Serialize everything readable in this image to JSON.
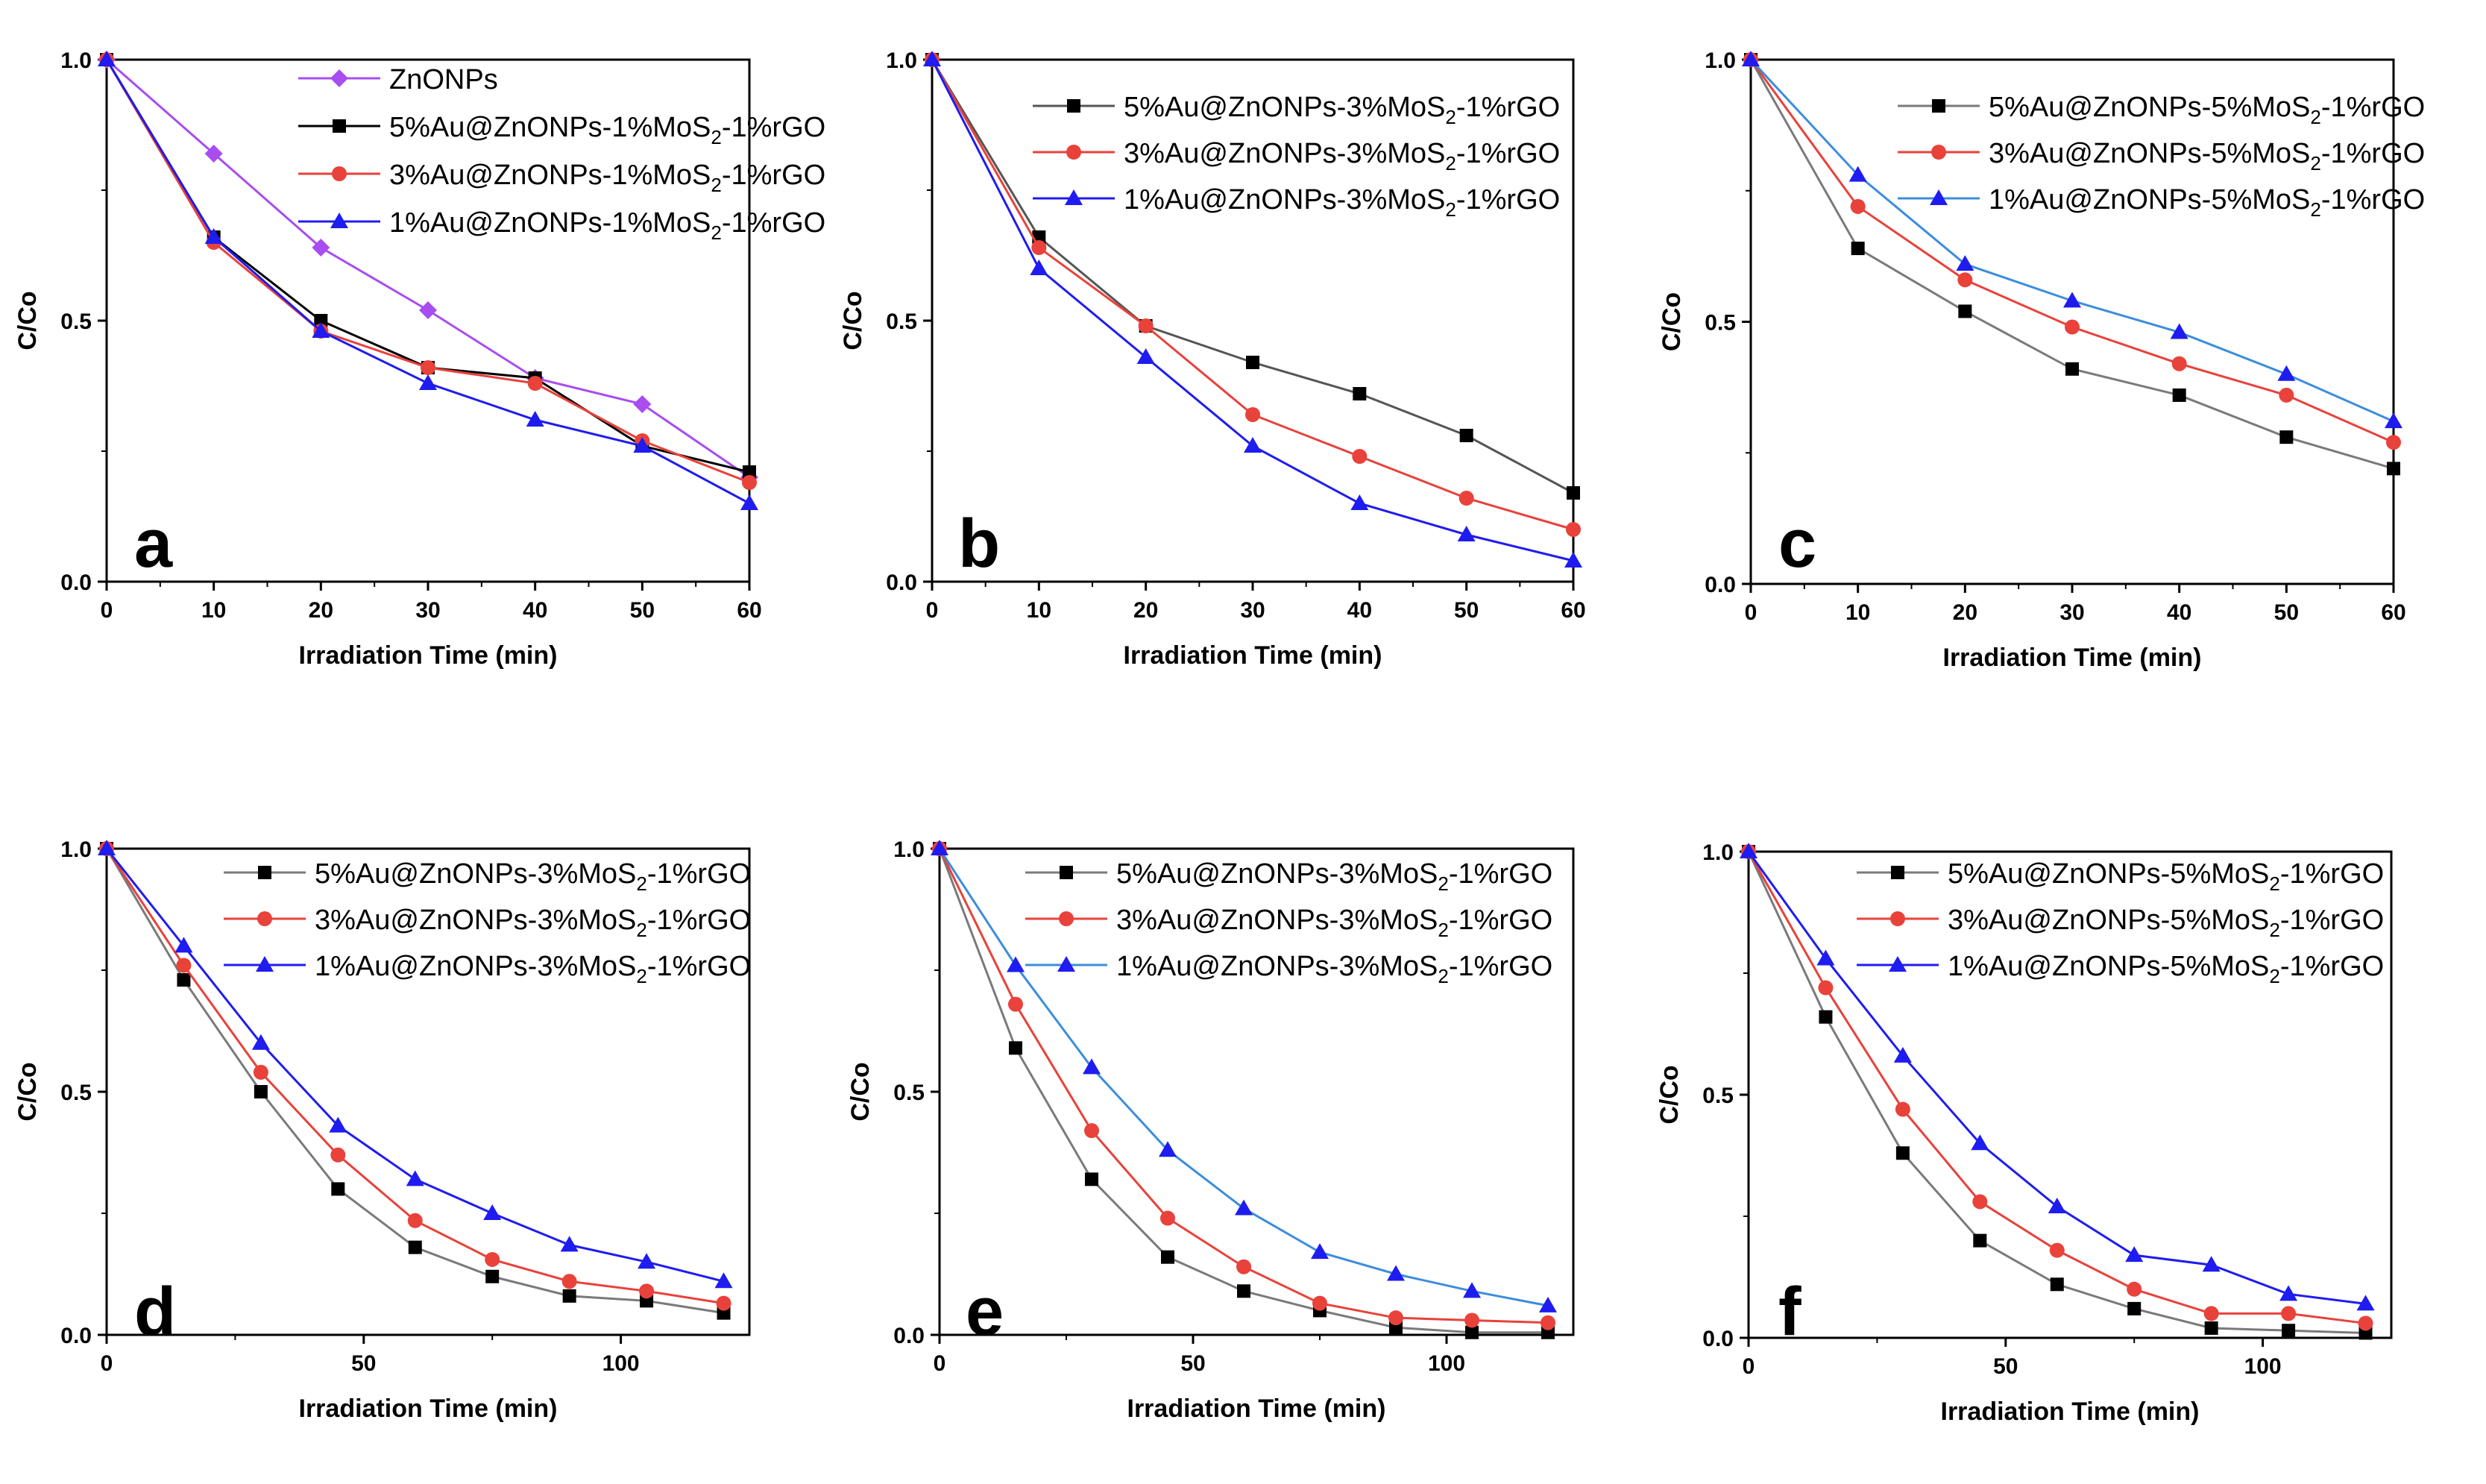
{
  "colors": {
    "black": "#000000",
    "red": "#e8423b",
    "blue": "#1f1cf0",
    "purple": "#a84df0",
    "grey_line": "#7a7a7a"
  },
  "chart_data": [
    {
      "type": "line",
      "panel": "a",
      "xlabel": "Irradiation Time (min)",
      "ylabel": "C/Co",
      "xlim": [
        0,
        60
      ],
      "ylim": [
        0,
        1.0
      ],
      "xticks": [
        0,
        10,
        20,
        30,
        40,
        50,
        60
      ],
      "yticks": [
        0.0,
        0.5,
        1.0
      ],
      "ytick_labels": [
        "0.0",
        "0.5",
        "1.0"
      ],
      "legend_position": "top-right",
      "series": [
        {
          "name": "ZnONPs",
          "name_main": "ZnONPs",
          "name_sub": "",
          "name_tail": "",
          "color": "#a84df0",
          "line_color": "#a84df0",
          "marker": "diamond",
          "x": [
            0,
            10,
            20,
            30,
            40,
            50,
            60
          ],
          "values": [
            1.0,
            0.82,
            0.64,
            0.52,
            0.39,
            0.34,
            0.2
          ]
        },
        {
          "name": "5%Au@ZnONPs-1%MoS2-1%rGO",
          "name_main": "5%Au@ZnONPs-1%MoS",
          "name_sub": "2",
          "name_tail": "-1%rGO",
          "color": "#000000",
          "line_color": "#000000",
          "marker": "square",
          "x": [
            0,
            10,
            20,
            30,
            40,
            50,
            60
          ],
          "values": [
            1.0,
            0.66,
            0.5,
            0.41,
            0.39,
            0.26,
            0.21
          ]
        },
        {
          "name": "3%Au@ZnONPs-1%MoS2-1%rGO",
          "name_main": "3%Au@ZnONPs-1%MoS",
          "name_sub": "2",
          "name_tail": "-1%rGO",
          "color": "#e8423b",
          "line_color": "#e8423b",
          "marker": "circle",
          "x": [
            0,
            10,
            20,
            30,
            40,
            50,
            60
          ],
          "values": [
            1.0,
            0.65,
            0.48,
            0.41,
            0.38,
            0.27,
            0.19
          ]
        },
        {
          "name": "1%Au@ZnONPs-1%MoS2-1%rGO",
          "name_main": "1%Au@ZnONPs-1%MoS",
          "name_sub": "2",
          "name_tail": "-1%rGO",
          "color": "#1f1cf0",
          "line_color": "#1f1cf0",
          "marker": "triangle",
          "x": [
            0,
            10,
            20,
            30,
            40,
            50,
            60
          ],
          "values": [
            1.0,
            0.66,
            0.48,
            0.38,
            0.31,
            0.26,
            0.15
          ]
        }
      ]
    },
    {
      "type": "line",
      "panel": "b",
      "xlabel": "Irradiation Time (min)",
      "ylabel": "C/Co",
      "xlim": [
        0,
        60
      ],
      "ylim": [
        0,
        1.0
      ],
      "xticks": [
        0,
        10,
        20,
        30,
        40,
        50,
        60
      ],
      "yticks": [
        0.0,
        0.5,
        1.0
      ],
      "ytick_labels": [
        "0.0",
        "0.5",
        "1.0"
      ],
      "legend_position": "top-right",
      "series": [
        {
          "name": "5%Au@ZnONPs-3%MoS2-1%rGO",
          "name_main": "5%Au@ZnONPs-3%MoS",
          "name_sub": "2",
          "name_tail": "-1%rGO",
          "color": "#000000",
          "line_color": "#555555",
          "marker": "square",
          "x": [
            0,
            10,
            20,
            30,
            40,
            50,
            60
          ],
          "values": [
            1.0,
            0.66,
            0.49,
            0.42,
            0.36,
            0.28,
            0.17
          ]
        },
        {
          "name": "3%Au@ZnONPs-3%MoS2-1%rGO",
          "name_main": "3%Au@ZnONPs-3%MoS",
          "name_sub": "2",
          "name_tail": "-1%rGO",
          "color": "#e8423b",
          "line_color": "#e8423b",
          "marker": "circle",
          "x": [
            0,
            10,
            20,
            30,
            40,
            50,
            60
          ],
          "values": [
            1.0,
            0.64,
            0.49,
            0.32,
            0.24,
            0.16,
            0.1
          ]
        },
        {
          "name": "1%Au@ZnONPs-3%MoS2-1%rGO",
          "name_main": "1%Au@ZnONPs-3%MoS",
          "name_sub": "2",
          "name_tail": "-1%rGO",
          "color": "#1f1cf0",
          "line_color": "#1f1cf0",
          "marker": "triangle",
          "x": [
            0,
            10,
            20,
            30,
            40,
            50,
            60
          ],
          "values": [
            1.0,
            0.6,
            0.43,
            0.26,
            0.15,
            0.09,
            0.04
          ]
        }
      ]
    },
    {
      "type": "line",
      "panel": "c",
      "xlabel": "Irradiation Time (min)",
      "ylabel": "C/Co",
      "xlim": [
        0,
        60
      ],
      "ylim": [
        0,
        1.0
      ],
      "xticks": [
        0,
        10,
        20,
        30,
        40,
        50,
        60
      ],
      "yticks": [
        0.0,
        0.5,
        1.0
      ],
      "ytick_labels": [
        "0.0",
        "0.5",
        "1.0"
      ],
      "legend_position": "top-right",
      "series": [
        {
          "name": "5%Au@ZnONPs-5%MoS2-1%rGO",
          "name_main": "5%Au@ZnONPs-5%MoS",
          "name_sub": "2",
          "name_tail": "-1%rGO",
          "color": "#000000",
          "line_color": "#7a7a7a",
          "marker": "square",
          "x": [
            0,
            10,
            20,
            30,
            40,
            50,
            60
          ],
          "values": [
            1.0,
            0.64,
            0.52,
            0.41,
            0.36,
            0.28,
            0.22
          ]
        },
        {
          "name": "3%Au@ZnONPs-5%MoS2-1%rGO",
          "name_main": "3%Au@ZnONPs-5%MoS",
          "name_sub": "2",
          "name_tail": "-1%rGO",
          "color": "#e8423b",
          "line_color": "#e8423b",
          "marker": "circle",
          "x": [
            0,
            10,
            20,
            30,
            40,
            50,
            60
          ],
          "values": [
            1.0,
            0.72,
            0.58,
            0.49,
            0.42,
            0.36,
            0.27
          ]
        },
        {
          "name": "1%Au@ZnONPs-5%MoS2-1%rGO",
          "name_main": "1%Au@ZnONPs-5%MoS",
          "name_sub": "2",
          "name_tail": "-1%rGO",
          "color": "#1f1cf0",
          "line_color": "#3c8ddc",
          "marker": "triangle",
          "x": [
            0,
            10,
            20,
            30,
            40,
            50,
            60
          ],
          "values": [
            1.0,
            0.78,
            0.61,
            0.54,
            0.48,
            0.4,
            0.31
          ]
        }
      ]
    },
    {
      "type": "line",
      "panel": "d",
      "xlabel": "Irradiation Time (min)",
      "ylabel": "C/Co",
      "xlim": [
        0,
        125
      ],
      "ylim": [
        0,
        1.0
      ],
      "xticks": [
        0,
        50,
        100
      ],
      "yticks": [
        0.0,
        0.5,
        1.0
      ],
      "ytick_labels": [
        "0.0",
        "0.5",
        "1.0"
      ],
      "legend_position": "top-right",
      "series": [
        {
          "name": "5%Au@ZnONPs-3%MoS2-1%rGO",
          "name_main": "5%Au@ZnONPs-3%MoS",
          "name_sub": "2",
          "name_tail": "-1%rGO",
          "color": "#000000",
          "line_color": "#7a7a7a",
          "marker": "square",
          "x": [
            0,
            15,
            30,
            45,
            60,
            75,
            90,
            105,
            120
          ],
          "values": [
            1.0,
            0.73,
            0.5,
            0.3,
            0.18,
            0.12,
            0.08,
            0.07,
            0.045
          ]
        },
        {
          "name": "3%Au@ZnONPs-3%MoS2-1%rGO",
          "name_main": "3%Au@ZnONPs-3%MoS",
          "name_sub": "2",
          "name_tail": "-1%rGO",
          "color": "#e8423b",
          "line_color": "#e8423b",
          "marker": "circle",
          "x": [
            0,
            15,
            30,
            45,
            60,
            75,
            90,
            105,
            120
          ],
          "values": [
            1.0,
            0.76,
            0.54,
            0.37,
            0.235,
            0.155,
            0.11,
            0.09,
            0.065
          ]
        },
        {
          "name": "1%Au@ZnONPs-3%MoS2-1%rGO",
          "name_main": "1%Au@ZnONPs-3%MoS",
          "name_sub": "2",
          "name_tail": "-1%rGO",
          "color": "#1f1cf0",
          "line_color": "#1f1cf0",
          "marker": "triangle",
          "x": [
            0,
            15,
            30,
            45,
            60,
            75,
            90,
            105,
            120
          ],
          "values": [
            1.0,
            0.8,
            0.6,
            0.43,
            0.32,
            0.25,
            0.185,
            0.15,
            0.11
          ]
        }
      ]
    },
    {
      "type": "line",
      "panel": "e",
      "xlabel": "Irradiation Time (min)",
      "ylabel": "C/Co",
      "xlim": [
        0,
        125
      ],
      "ylim": [
        0,
        1.0
      ],
      "xticks": [
        0,
        50,
        100
      ],
      "yticks": [
        0.0,
        0.5,
        1.0
      ],
      "ytick_labels": [
        "0.0",
        "0.5",
        "1.0"
      ],
      "legend_position": "top-right",
      "series": [
        {
          "name": "5%Au@ZnONPs-3%MoS2-1%rGO",
          "name_main": "5%Au@ZnONPs-3%MoS",
          "name_sub": "2",
          "name_tail": "-1%rGO",
          "color": "#000000",
          "line_color": "#7a7a7a",
          "marker": "square",
          "x": [
            0,
            15,
            30,
            45,
            60,
            75,
            90,
            105,
            120
          ],
          "values": [
            1.0,
            0.59,
            0.32,
            0.16,
            0.09,
            0.05,
            0.015,
            0.005,
            0.005
          ]
        },
        {
          "name": "3%Au@ZnONPs-3%MoS2-1%rGO",
          "name_main": "3%Au@ZnONPs-3%MoS",
          "name_sub": "2",
          "name_tail": "-1%rGO",
          "color": "#e8423b",
          "line_color": "#e8423b",
          "marker": "circle",
          "x": [
            0,
            15,
            30,
            45,
            60,
            75,
            90,
            105,
            120
          ],
          "values": [
            1.0,
            0.68,
            0.42,
            0.24,
            0.14,
            0.065,
            0.035,
            0.03,
            0.025
          ]
        },
        {
          "name": "1%Au@ZnONPs-3%MoS2-1%rGO",
          "name_main": "1%Au@ZnONPs-3%MoS",
          "name_sub": "2",
          "name_tail": "-1%rGO",
          "color": "#1f1cf0",
          "line_color": "#3c8ddc",
          "marker": "triangle",
          "x": [
            0,
            15,
            30,
            45,
            60,
            75,
            90,
            105,
            120
          ],
          "values": [
            1.0,
            0.76,
            0.55,
            0.38,
            0.26,
            0.17,
            0.125,
            0.09,
            0.06
          ]
        }
      ]
    },
    {
      "type": "line",
      "panel": "f",
      "xlabel": "Irradiation Time (min)",
      "ylabel": "C/Co",
      "xlim": [
        0,
        125
      ],
      "ylim": [
        0,
        1.0
      ],
      "xticks": [
        0,
        50,
        100
      ],
      "yticks": [
        0.0,
        0.5,
        1.0
      ],
      "ytick_labels": [
        "0.0",
        "0.5",
        "1.0"
      ],
      "legend_position": "top-right",
      "series": [
        {
          "name": "5%Au@ZnONPs-5%MoS2-1%rGO",
          "name_main": "5%Au@ZnONPs-5%MoS",
          "name_sub": "2",
          "name_tail": "-1%rGO",
          "color": "#000000",
          "line_color": "#7a7a7a",
          "marker": "square",
          "x": [
            0,
            15,
            30,
            45,
            60,
            75,
            90,
            105,
            120
          ],
          "values": [
            1.0,
            0.66,
            0.38,
            0.2,
            0.11,
            0.06,
            0.02,
            0.015,
            0.01
          ]
        },
        {
          "name": "3%Au@ZnONPs-5%MoS2-1%rGO",
          "name_main": "3%Au@ZnONPs-5%MoS",
          "name_sub": "2",
          "name_tail": "-1%rGO",
          "color": "#e8423b",
          "line_color": "#e8423b",
          "marker": "circle",
          "x": [
            0,
            15,
            30,
            45,
            60,
            75,
            90,
            105,
            120
          ],
          "values": [
            1.0,
            0.72,
            0.47,
            0.28,
            0.18,
            0.1,
            0.05,
            0.05,
            0.03
          ]
        },
        {
          "name": "1%Au@ZnONPs-5%MoS2-1%rGO",
          "name_main": "1%Au@ZnONPs-5%MoS",
          "name_sub": "2",
          "name_tail": "-1%rGO",
          "color": "#1f1cf0",
          "line_color": "#1f1cf0",
          "marker": "triangle",
          "x": [
            0,
            15,
            30,
            45,
            60,
            75,
            90,
            105,
            120
          ],
          "values": [
            1.0,
            0.78,
            0.58,
            0.4,
            0.27,
            0.17,
            0.15,
            0.09,
            0.07
          ]
        }
      ]
    }
  ]
}
